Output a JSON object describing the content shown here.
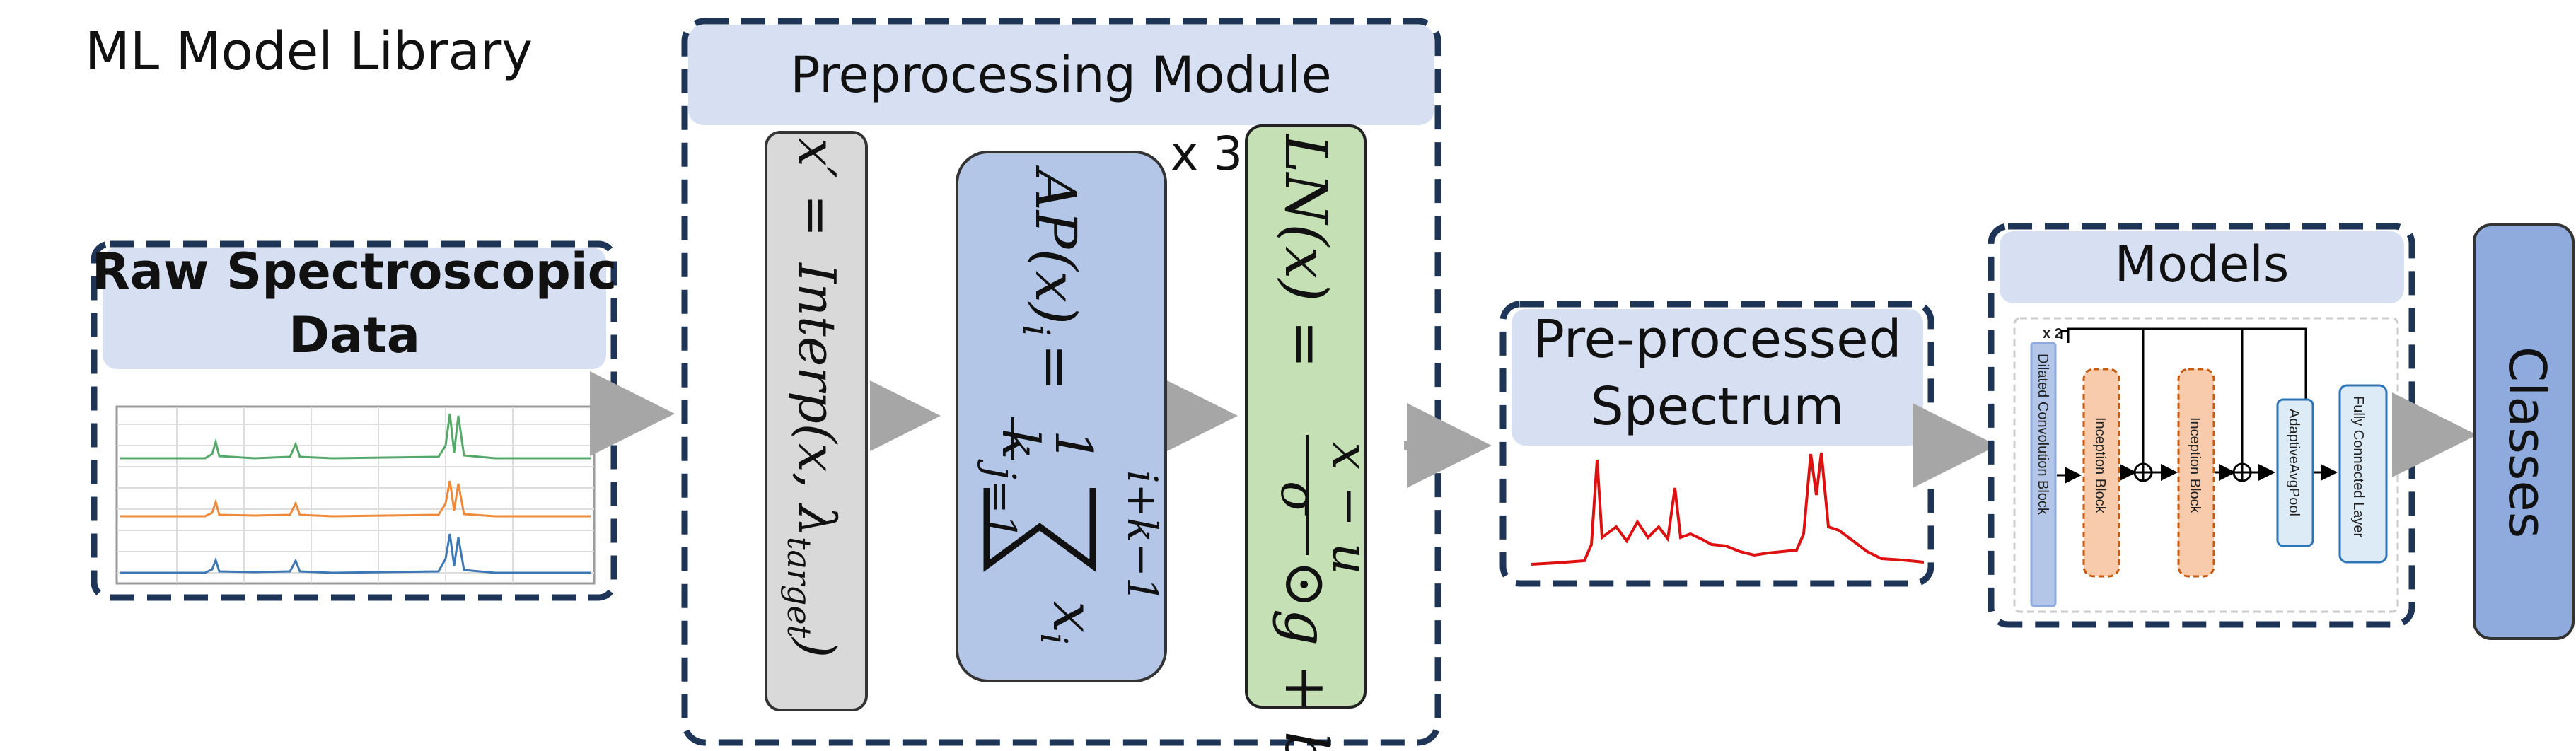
{
  "title": "ML Model Library",
  "raw_data": {
    "title_line1": "Raw Spectroscopic",
    "title_line2": "Data"
  },
  "preprocessing": {
    "title": "Preprocessing Module",
    "repeat_label": "x 3",
    "interp": {
      "lhs": "x′ =",
      "fn": "Interp(x, λ",
      "sub": "target",
      "close": ")"
    },
    "avgpool": {
      "lhs": "AP(x)",
      "sub_i": "i",
      "eq": "=",
      "frac_num": "1",
      "frac_den": "k",
      "sum_top": "i+k−1",
      "sum_bottom": "j=1",
      "term": "x",
      "term_sub": "i"
    },
    "layernorm": {
      "lhs": "LN(x) =",
      "num": "x − u",
      "den": "σ",
      "rest": "⊙g + b"
    }
  },
  "preprocessed": {
    "title_line1": "Pre-processed",
    "title_line2": "Spectrum"
  },
  "models": {
    "title": "Models",
    "repeat_label": "x 2",
    "blocks": [
      "Dilated Convolution Block",
      "Inception Block",
      "Inception Block",
      "AdaptiveAvgPool",
      "Fully Connected Layer"
    ]
  },
  "classes": {
    "label": "Classes"
  },
  "colors": {
    "dash_border": "#1f3557",
    "header_fill": "#d6e0f2",
    "interp_fill": "#d9d9d9",
    "ap_fill": "#b4c6e7",
    "ln_fill": "#c5e0b4",
    "arrow": "#a6a6a6",
    "green_line": "#55a868",
    "orange_line": "#ef8a3a",
    "blue_line": "#3d78b5",
    "red_line": "#dd1111",
    "classes_fill": "#8faadc"
  }
}
